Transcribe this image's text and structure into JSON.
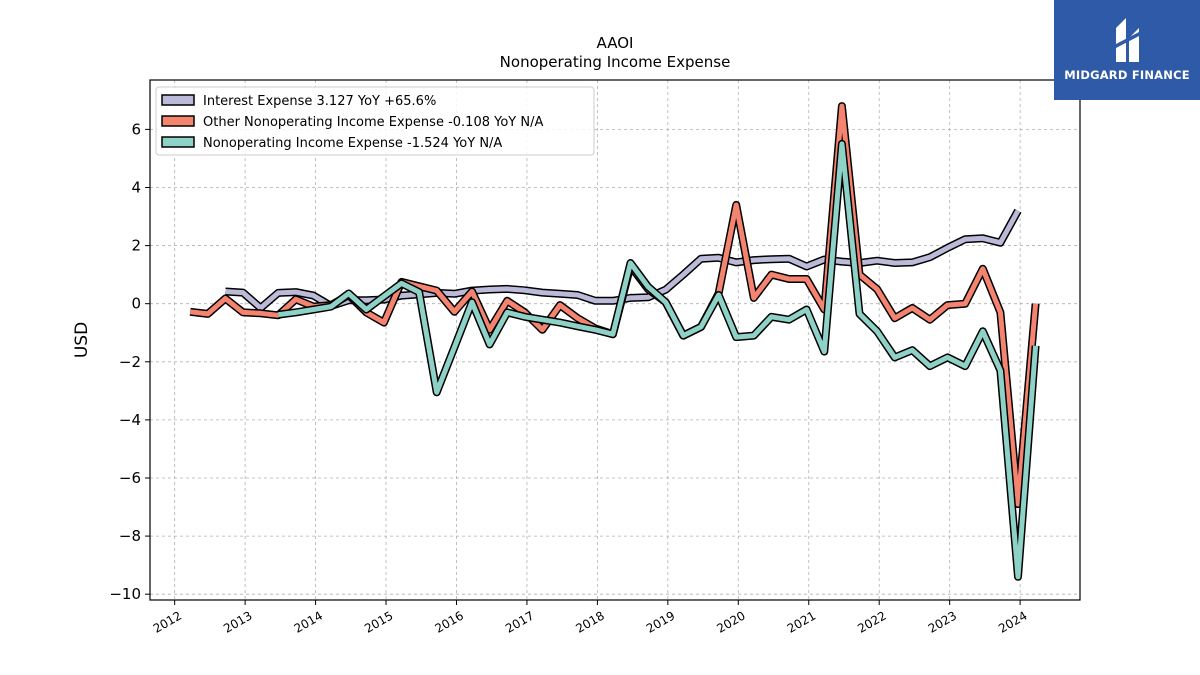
{
  "logo": {
    "text": "MIDGARD FINANCE",
    "bg": "#2f5aa8"
  },
  "chart_data": {
    "type": "line",
    "title": "AAOI",
    "subtitle": "Nonoperating Income Expense",
    "ylabel": "USD",
    "xlabel": "",
    "xlim": [
      2011.65,
      2024.85
    ],
    "ylim": [
      -10.2,
      7.7
    ],
    "x_ticks": [
      "2012",
      "2013",
      "2014",
      "2015",
      "2016",
      "2017",
      "2018",
      "2019",
      "2020",
      "2021",
      "2022",
      "2023",
      "2024"
    ],
    "y_ticks": [
      6,
      4,
      2,
      0,
      -2,
      -4,
      -6,
      -8,
      -10
    ],
    "y_tick_labels": [
      "6",
      "4",
      "2",
      "0",
      "−2",
      "−4",
      "−6",
      "−8",
      "−10"
    ],
    "grid": true,
    "legend_position": "top-left",
    "series": [
      {
        "name": "Interest Expense",
        "legend": "Interest Expense  3.127 YoY +65.6%",
        "color": "#bcbad9",
        "points": [
          [
            2012.72,
            0.42
          ],
          [
            2012.97,
            0.38
          ],
          [
            2013.22,
            -0.15
          ],
          [
            2013.47,
            0.37
          ],
          [
            2013.72,
            0.4
          ],
          [
            2013.97,
            0.28
          ],
          [
            2014.22,
            -0.08
          ],
          [
            2014.47,
            0.12
          ],
          [
            2014.72,
            0.12
          ],
          [
            2014.97,
            0.14
          ],
          [
            2015.22,
            0.28
          ],
          [
            2015.47,
            0.32
          ],
          [
            2015.72,
            0.37
          ],
          [
            2015.97,
            0.34
          ],
          [
            2016.22,
            0.45
          ],
          [
            2016.47,
            0.49
          ],
          [
            2016.72,
            0.51
          ],
          [
            2016.97,
            0.46
          ],
          [
            2017.22,
            0.38
          ],
          [
            2017.47,
            0.34
          ],
          [
            2017.72,
            0.3
          ],
          [
            2017.97,
            0.1
          ],
          [
            2018.22,
            0.1
          ],
          [
            2018.47,
            0.2
          ],
          [
            2018.72,
            0.22
          ],
          [
            2018.97,
            0.48
          ],
          [
            2019.22,
            1.0
          ],
          [
            2019.47,
            1.55
          ],
          [
            2019.72,
            1.58
          ],
          [
            2019.97,
            1.42
          ],
          [
            2020.22,
            1.5
          ],
          [
            2020.47,
            1.53
          ],
          [
            2020.72,
            1.55
          ],
          [
            2020.97,
            1.28
          ],
          [
            2021.22,
            1.52
          ],
          [
            2021.47,
            1.45
          ],
          [
            2021.72,
            1.4
          ],
          [
            2021.97,
            1.48
          ],
          [
            2022.22,
            1.4
          ],
          [
            2022.47,
            1.42
          ],
          [
            2022.72,
            1.6
          ],
          [
            2022.97,
            1.92
          ],
          [
            2023.22,
            2.22
          ],
          [
            2023.47,
            2.25
          ],
          [
            2023.72,
            2.1
          ],
          [
            2023.97,
            3.2
          ]
        ]
      },
      {
        "name": "Other Nonoperating Income Expense",
        "legend": "Other Nonoperating Income Expense  -0.108 YoY N/A",
        "color": "#f4846f",
        "points": [
          [
            2012.22,
            -0.28
          ],
          [
            2012.47,
            -0.35
          ],
          [
            2012.72,
            0.18
          ],
          [
            2012.97,
            -0.3
          ],
          [
            2013.22,
            -0.33
          ],
          [
            2013.47,
            -0.4
          ],
          [
            2013.72,
            0.15
          ],
          [
            2013.97,
            -0.1
          ],
          [
            2014.22,
            -0.05
          ],
          [
            2014.47,
            0.3
          ],
          [
            2014.72,
            -0.3
          ],
          [
            2014.97,
            -0.65
          ],
          [
            2015.22,
            0.75
          ],
          [
            2015.47,
            0.6
          ],
          [
            2015.72,
            0.45
          ],
          [
            2015.97,
            -0.28
          ],
          [
            2016.22,
            0.42
          ],
          [
            2016.47,
            -0.9
          ],
          [
            2016.72,
            0.1
          ],
          [
            2016.97,
            -0.3
          ],
          [
            2017.22,
            -0.9
          ],
          [
            2017.47,
            -0.05
          ],
          [
            2017.72,
            -0.5
          ],
          [
            2017.97,
            -0.85
          ],
          [
            2018.22,
            -1.05
          ],
          [
            2018.47,
            1.3
          ],
          [
            2018.72,
            0.5
          ],
          [
            2018.97,
            0.05
          ],
          [
            2019.22,
            -1.1
          ],
          [
            2019.47,
            -0.8
          ],
          [
            2019.72,
            0.35
          ],
          [
            2019.97,
            3.4
          ],
          [
            2020.22,
            0.2
          ],
          [
            2020.47,
            1.0
          ],
          [
            2020.72,
            0.85
          ],
          [
            2020.97,
            0.85
          ],
          [
            2021.22,
            -0.2
          ],
          [
            2021.47,
            6.8
          ],
          [
            2021.72,
            1.0
          ],
          [
            2021.97,
            0.5
          ],
          [
            2022.22,
            -0.5
          ],
          [
            2022.47,
            -0.15
          ],
          [
            2022.72,
            -0.55
          ],
          [
            2022.97,
            -0.05
          ],
          [
            2023.22,
            0.0
          ],
          [
            2023.47,
            1.2
          ],
          [
            2023.72,
            -0.3
          ],
          [
            2023.97,
            -6.9
          ],
          [
            2024.22,
            0.0
          ]
        ]
      },
      {
        "name": "Nonoperating Income Expense",
        "legend": "Nonoperating Income Expense  -1.524 YoY N/A",
        "color": "#8ed1c6",
        "points": [
          [
            2013.47,
            -0.38
          ],
          [
            2013.72,
            -0.3
          ],
          [
            2013.97,
            -0.2
          ],
          [
            2014.22,
            -0.1
          ],
          [
            2014.47,
            0.35
          ],
          [
            2014.72,
            -0.2
          ],
          [
            2014.97,
            0.25
          ],
          [
            2015.22,
            0.7
          ],
          [
            2015.47,
            0.4
          ],
          [
            2015.72,
            -3.05
          ],
          [
            2015.97,
            -1.5
          ],
          [
            2016.22,
            0.05
          ],
          [
            2016.47,
            -1.4
          ],
          [
            2016.72,
            -0.3
          ],
          [
            2016.97,
            -0.45
          ],
          [
            2017.22,
            -0.55
          ],
          [
            2017.47,
            -0.65
          ],
          [
            2017.72,
            -0.78
          ],
          [
            2017.97,
            -0.9
          ],
          [
            2018.22,
            -1.05
          ],
          [
            2018.47,
            1.4
          ],
          [
            2018.72,
            0.58
          ],
          [
            2018.97,
            0.05
          ],
          [
            2019.22,
            -1.1
          ],
          [
            2019.47,
            -0.8
          ],
          [
            2019.72,
            0.3
          ],
          [
            2019.97,
            -1.15
          ],
          [
            2020.22,
            -1.1
          ],
          [
            2020.47,
            -0.45
          ],
          [
            2020.72,
            -0.55
          ],
          [
            2020.97,
            -0.2
          ],
          [
            2021.22,
            -1.65
          ],
          [
            2021.47,
            5.5
          ],
          [
            2021.72,
            -0.35
          ],
          [
            2021.97,
            -0.95
          ],
          [
            2022.22,
            -1.85
          ],
          [
            2022.47,
            -1.6
          ],
          [
            2022.72,
            -2.15
          ],
          [
            2022.97,
            -1.85
          ],
          [
            2023.22,
            -2.15
          ],
          [
            2023.47,
            -0.95
          ],
          [
            2023.72,
            -2.3
          ],
          [
            2023.97,
            -9.4
          ],
          [
            2024.22,
            -1.45
          ]
        ]
      }
    ]
  }
}
